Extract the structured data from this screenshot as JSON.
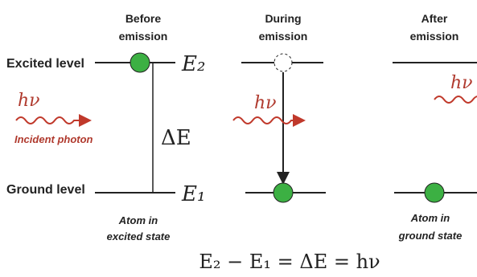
{
  "levels": {
    "excited": "Excited level",
    "ground": "Ground level"
  },
  "energy_labels": {
    "upper": "E₂",
    "lower": "E₁",
    "gap": "ΔE"
  },
  "columns": [
    {
      "heading": [
        "Before",
        "emission"
      ],
      "caption": [
        "Atom in",
        "excited state"
      ]
    },
    {
      "heading": [
        "During",
        "emission"
      ]
    },
    {
      "heading": [
        "After",
        "emission"
      ],
      "caption": [
        "Atom in",
        "ground state"
      ]
    }
  ],
  "photons": {
    "incident_symbol": "hν",
    "incident_label": "Incident photon",
    "during_symbol": "hν",
    "after_symbol": "hν"
  },
  "equation": "E₂ − E₁ = ΔE = hν"
}
